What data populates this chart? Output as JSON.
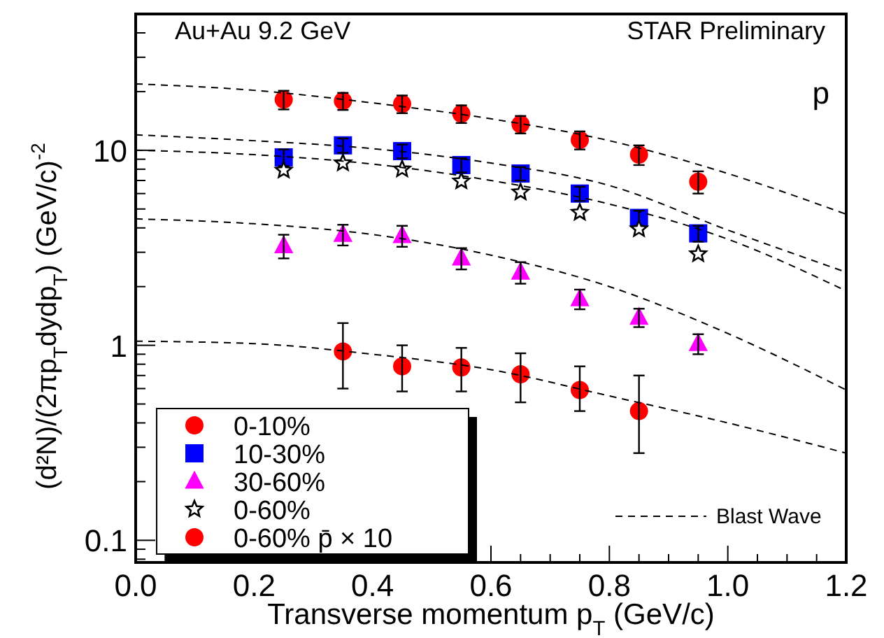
{
  "chart_data": {
    "type": "scatter",
    "xlabel": "Transverse momentum p$_{T}$ (GeV/c)",
    "ylabel": "(d²N)/(2πp$_{T}$dydp$_{T}$) (GeV/c)$^{-2}$",
    "annotations": [
      "Au+Au 9.2 GeV",
      "STAR Preliminary",
      "p"
    ],
    "log": "y",
    "legend": "bottom left",
    "grid": false,
    "xlim": [
      0,
      1.2
    ],
    "ylim": [
      0.077,
      50
    ],
    "xticks": [
      {
        "value": 0,
        "label": "0.0"
      },
      {
        "value": 0.05,
        "label": null
      },
      {
        "value": 0.1,
        "label": null
      },
      {
        "value": 0.15,
        "label": null
      },
      0.2,
      {
        "value": 0.25,
        "label": null
      },
      {
        "value": 0.3,
        "label": null
      },
      {
        "value": 0.35,
        "label": null
      },
      0.4,
      {
        "value": 0.45,
        "label": null
      },
      {
        "value": 0.5,
        "label": null
      },
      {
        "value": 0.55,
        "label": null
      },
      0.6,
      {
        "value": 0.65,
        "label": null
      },
      {
        "value": 0.7,
        "label": null
      },
      {
        "value": 0.75,
        "label": null
      },
      0.8,
      {
        "value": 0.85,
        "label": null
      },
      {
        "value": 0.9,
        "label": null
      },
      {
        "value": 0.95,
        "label": null
      },
      {
        "value": 1,
        "label": "1.0"
      },
      {
        "value": 1.05,
        "label": null
      },
      {
        "value": 1.1,
        "label": null
      },
      {
        "value": 1.15,
        "label": null
      },
      1.2
    ],
    "yticks": [
      {
        "value": 0.08,
        "label": null
      },
      {
        "value": 0.09,
        "label": null
      },
      0.1,
      {
        "value": 0.2,
        "label": null
      },
      {
        "value": 0.3,
        "label": null
      },
      {
        "value": 0.4,
        "label": null
      },
      {
        "value": 0.5,
        "label": null
      },
      {
        "value": 0.6,
        "label": null
      },
      {
        "value": 0.7,
        "label": null
      },
      {
        "value": 0.8,
        "label": null
      },
      {
        "value": 0.9,
        "label": null
      },
      1,
      {
        "value": 2,
        "label": null
      },
      {
        "value": 3,
        "label": null
      },
      {
        "value": 4,
        "label": null
      },
      {
        "value": 5,
        "label": null
      },
      {
        "value": 6,
        "label": null
      },
      {
        "value": 7,
        "label": null
      },
      {
        "value": 8,
        "label": null
      },
      {
        "value": 9,
        "label": null
      },
      10,
      {
        "value": 20,
        "label": null
      },
      {
        "value": 30,
        "label": null
      },
      {
        "value": 40,
        "label": null
      },
      {
        "value": 50,
        "label": null
      }
    ],
    "series": [
      {
        "name": "0-10%",
        "marker": "circle",
        "color": "#ff0000",
        "x": [
          0.25,
          0.35,
          0.45,
          0.55,
          0.65,
          0.75,
          0.85,
          0.95
        ],
        "values": [
          18.2,
          17.9,
          17.3,
          15.4,
          13.6,
          11.3,
          9.5,
          6.9
        ],
        "errors": [
          2,
          1.8,
          1.8,
          1.6,
          1.4,
          1.2,
          1.1,
          0.9
        ]
      },
      {
        "name": "10-30%",
        "marker": "square",
        "color": "#0000ff",
        "x": [
          0.25,
          0.35,
          0.45,
          0.55,
          0.65,
          0.75,
          0.85,
          0.95
        ],
        "values": [
          9.2,
          10.6,
          9.9,
          8.4,
          7.6,
          6.0,
          4.5,
          3.75
        ],
        "errors": [
          0.9,
          0.9,
          0.8,
          0.7,
          0.6,
          0.5,
          0.4,
          0.35
        ]
      },
      {
        "name": "30-60%",
        "marker": "triangle",
        "color": "#ff00ff",
        "x": [
          0.25,
          0.35,
          0.45,
          0.55,
          0.65,
          0.75,
          0.85,
          0.95
        ],
        "values": [
          3.24,
          3.7,
          3.65,
          2.8,
          2.37,
          1.73,
          1.39,
          1.02
        ],
        "errors": [
          0.45,
          0.45,
          0.45,
          0.35,
          0.3,
          0.2,
          0.15,
          0.12
        ]
      },
      {
        "name": "0-60%",
        "marker": "star",
        "color": "#000000",
        "x": [
          0.25,
          0.35,
          0.45,
          0.55,
          0.65,
          0.75,
          0.85,
          0.95
        ],
        "values": [
          7.9,
          8.6,
          8.0,
          6.95,
          6.1,
          4.8,
          3.95,
          2.94
        ]
      },
      {
        "name": "0-60% p̄ × 10",
        "marker": "circle",
        "color": "#ff0000",
        "x": [
          0.35,
          0.45,
          0.55,
          0.65,
          0.75,
          0.85
        ],
        "values": [
          0.93,
          0.78,
          0.77,
          0.71,
          0.59,
          0.46
        ],
        "errors": [
          [
            0.6,
            1.3
          ],
          [
            0.58,
            1.0
          ],
          [
            0.58,
            0.97
          ],
          [
            0.51,
            0.91
          ],
          [
            0.46,
            0.78
          ],
          [
            0.28,
            0.7
          ]
        ]
      },
      {
        "name": "Blast Wave",
        "type": "line",
        "line_style": "dashed",
        "marker": "none",
        "color": "#000000",
        "x": [
          0,
          0.2,
          0.4,
          0.6,
          0.8,
          1.0,
          1.2
        ],
        "values": [
          21.9,
          20.3,
          17.5,
          14.5,
          11.2,
          7.6,
          4.7
        ]
      },
      {
        "type": "line",
        "line_style": "dashed",
        "marker": "none",
        "color": "#000000",
        "x": [
          0,
          0.2,
          0.4,
          0.6,
          0.8,
          1.0,
          1.2
        ],
        "values": [
          12,
          11.2,
          10.2,
          8.6,
          6.6,
          3.9,
          2.37
        ]
      },
      {
        "type": "line",
        "line_style": "dashed",
        "marker": "none",
        "color": "#000000",
        "x": [
          0,
          0.2,
          0.4,
          0.6,
          0.8,
          1.0,
          1.2
        ],
        "values": [
          10,
          9.5,
          8.5,
          7.0,
          5.3,
          3.5,
          1.9
        ]
      },
      {
        "type": "line",
        "line_style": "dashed",
        "marker": "none",
        "color": "#000000",
        "x": [
          0,
          0.2,
          0.4,
          0.6,
          0.8,
          1.0,
          1.2
        ],
        "values": [
          4.45,
          4.2,
          3.7,
          2.9,
          2.0,
          1.15,
          0.59
        ]
      },
      {
        "type": "line",
        "line_style": "dashed",
        "marker": "none",
        "color": "#000000",
        "x": [
          0,
          0.2,
          0.4,
          0.6,
          0.8,
          1.0,
          1.2
        ],
        "values": [
          1.05,
          1.02,
          0.9,
          0.75,
          0.55,
          0.4,
          0.28
        ]
      }
    ]
  }
}
